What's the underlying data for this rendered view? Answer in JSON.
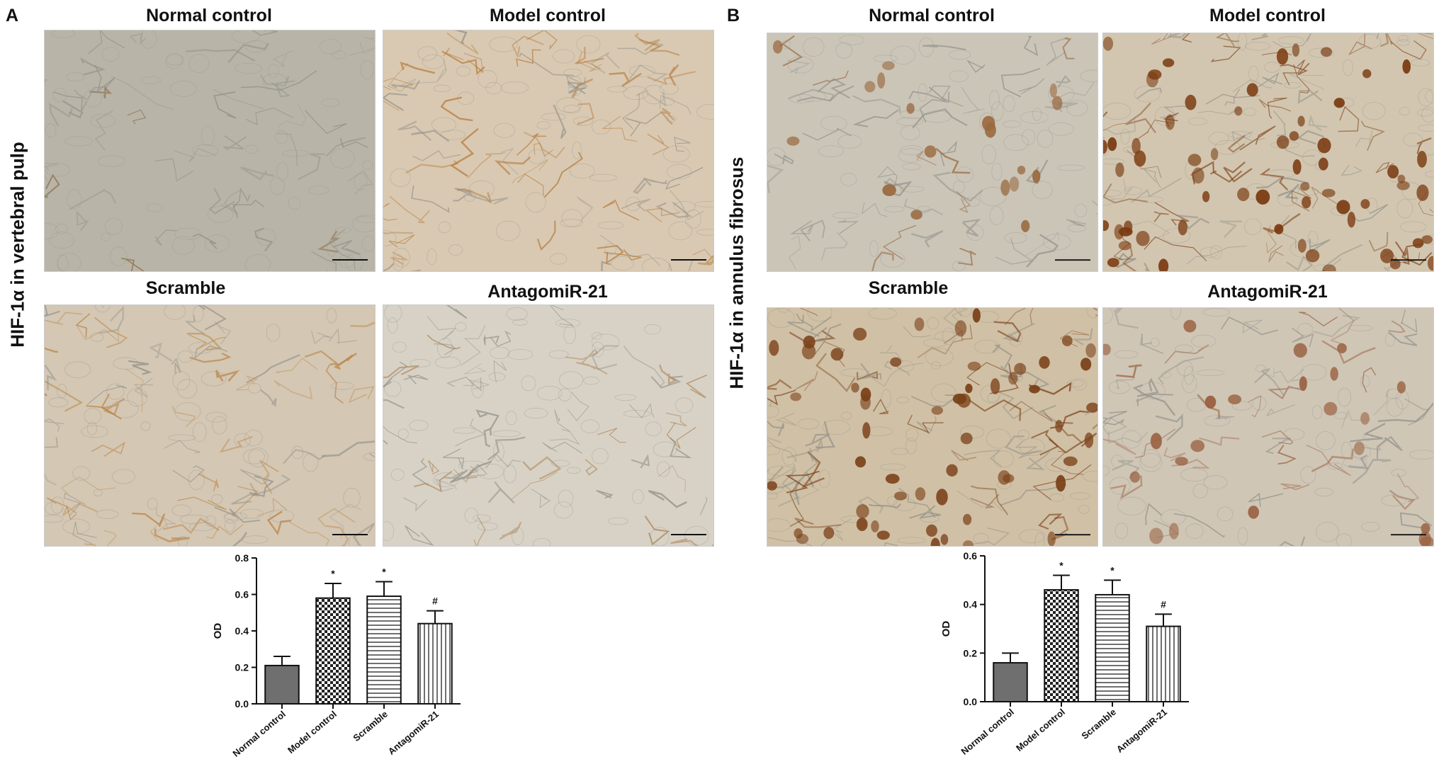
{
  "panels": [
    {
      "letter": "A",
      "side_label": "HIF-1α in vertebral pulp",
      "images": [
        {
          "title": "Normal control",
          "tone": "#b8b4a8",
          "stain": "#8a6a40",
          "density": 0.15,
          "nuclei": 0
        },
        {
          "title": "Model control",
          "tone": "#d9c9b2",
          "stain": "#b57a3a",
          "density": 0.55,
          "nuclei": 0
        },
        {
          "title": "Scramble",
          "tone": "#d4c7b3",
          "stain": "#b88040",
          "density": 0.5,
          "nuclei": 0
        },
        {
          "title": "AntagomiR-21",
          "tone": "#d8d2c6",
          "stain": "#a98050",
          "density": 0.3,
          "nuclei": 0
        }
      ],
      "chart_data": {
        "type": "bar",
        "categories": [
          "Normal control",
          "Model control",
          "Scramble",
          "AntagomiR-21"
        ],
        "values": [
          0.21,
          0.58,
          0.59,
          0.44
        ],
        "errors": [
          0.05,
          0.08,
          0.08,
          0.07
        ],
        "annotations": [
          "",
          "*",
          "*",
          "#"
        ],
        "patterns": [
          "solid",
          "checker",
          "horizontal",
          "vertical"
        ],
        "ylabel": "OD",
        "ylim": [
          0,
          0.8
        ],
        "yticks": [
          "0.0",
          "0.2",
          "0.4",
          "0.6",
          "0.8"
        ],
        "ytick_values": [
          0,
          0.2,
          0.4,
          0.6,
          0.8
        ]
      }
    },
    {
      "letter": "B",
      "side_label": "HIF-1α in annulus fibrosus",
      "images": [
        {
          "title": "Normal control",
          "tone": "#cbc5b8",
          "stain": "#9a6a40",
          "density": 0.15,
          "nuclei": 18
        },
        {
          "title": "Model control",
          "tone": "#d2c6b0",
          "stain": "#7a3a10",
          "density": 0.6,
          "nuclei": 60
        },
        {
          "title": "Scramble",
          "tone": "#d0c0a5",
          "stain": "#7a4018",
          "density": 0.55,
          "nuclei": 55
        },
        {
          "title": "AntagomiR-21",
          "tone": "#cfc6b6",
          "stain": "#9a6040",
          "density": 0.3,
          "nuclei": 22
        }
      ],
      "chart_data": {
        "type": "bar",
        "categories": [
          "Normal control",
          "Model control",
          "Scramble",
          "AntagomiR-21"
        ],
        "values": [
          0.16,
          0.46,
          0.44,
          0.31
        ],
        "errors": [
          0.04,
          0.06,
          0.06,
          0.05
        ],
        "annotations": [
          "",
          "*",
          "*",
          "#"
        ],
        "patterns": [
          "solid",
          "checker",
          "horizontal",
          "vertical"
        ],
        "ylabel": "OD",
        "ylim": [
          0,
          0.6
        ],
        "yticks": [
          "0.0",
          "0.2",
          "0.4",
          "0.6"
        ],
        "ytick_values": [
          0,
          0.2,
          0.4,
          0.6
        ]
      }
    }
  ]
}
